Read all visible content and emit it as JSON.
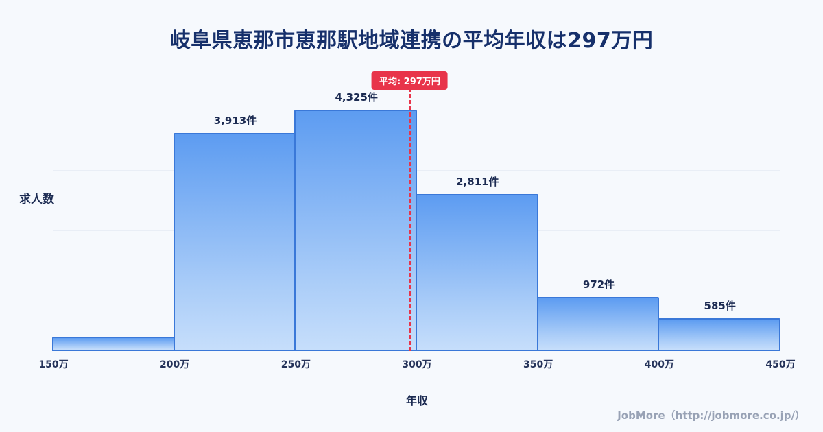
{
  "page": {
    "footer": "JobMore（http://jobmore.co.jp/）"
  },
  "chart_data": {
    "type": "bar",
    "title": "岐阜県恵那市恵那駅地域連携の平均年収は297万円",
    "xlabel": "年収",
    "ylabel": "求人数",
    "x_range": [
      150,
      450
    ],
    "x_ticks": [
      "150万",
      "200万",
      "250万",
      "300万",
      "350万",
      "400万",
      "450万"
    ],
    "bins": [
      {
        "range": "150万-200万",
        "value": 260,
        "label": ""
      },
      {
        "range": "200万-250万",
        "value": 3913,
        "label": "3,913件"
      },
      {
        "range": "250万-300万",
        "value": 4325,
        "label": "4,325件"
      },
      {
        "range": "300万-350万",
        "value": 2811,
        "label": "2,811件"
      },
      {
        "range": "350万-400万",
        "value": 972,
        "label": "972件"
      },
      {
        "range": "400万-450万",
        "value": 585,
        "label": "585件"
      }
    ],
    "average": {
      "value": 297,
      "label": "平均: 297万円"
    },
    "legend": null,
    "grid": "faint-horizontal",
    "colors": {
      "bar_top": "#5d9cf1",
      "bar_bottom": "#c6defb",
      "bar_border": "#3a78d8",
      "average_line": "#e8344a",
      "title_text": "#16306b"
    }
  }
}
